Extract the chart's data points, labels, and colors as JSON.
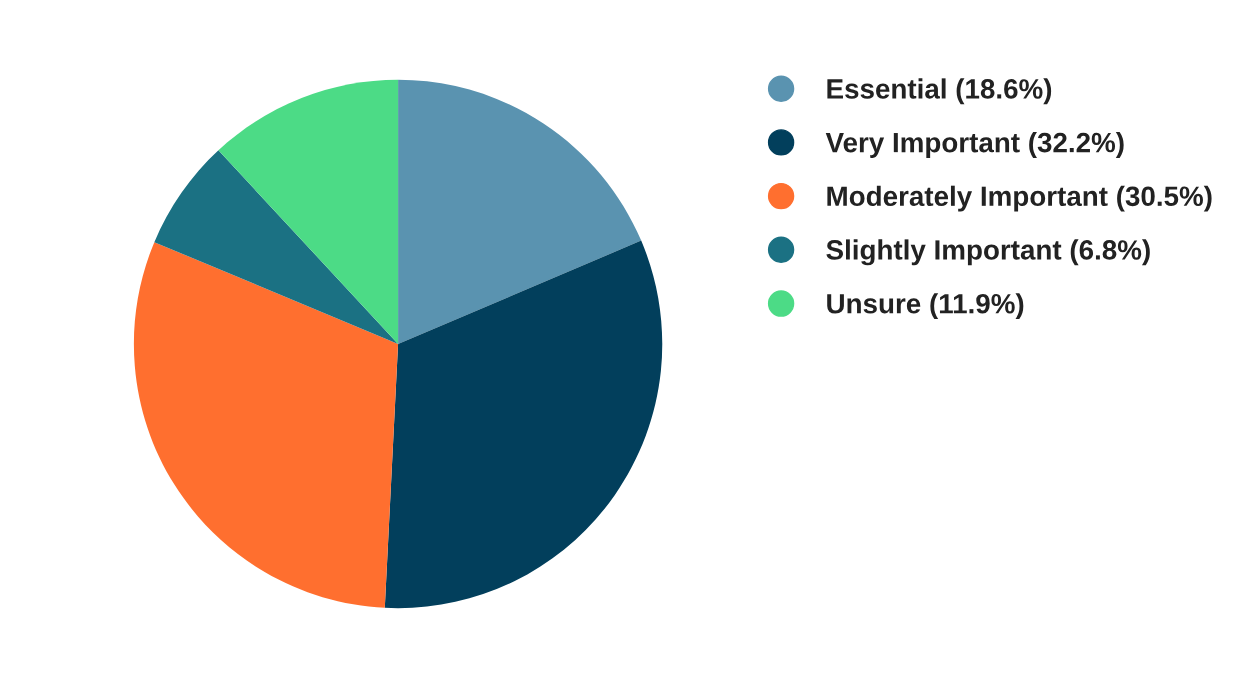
{
  "chart_data": {
    "type": "pie",
    "categories": [
      "Essential (18.6%)",
      "Very Important (32.2%)",
      "Moderately Important (30.5%)",
      "Slightly Important (6.8%)",
      "Unsure (11.9%)"
    ],
    "values": [
      18.6,
      32.2,
      30.5,
      6.8,
      11.9
    ],
    "colors": [
      "#5a93b0",
      "#023f5c",
      "#ff6f2f",
      "#1b7183",
      "#4cdb86"
    ],
    "legend": "right"
  }
}
